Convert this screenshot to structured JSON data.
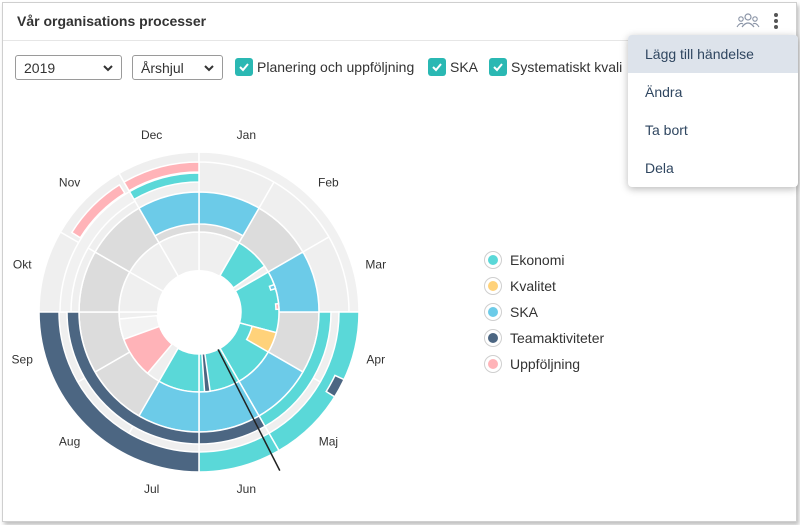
{
  "header": {
    "title": "Vår organisations processer",
    "people_icon": "people-group-icon",
    "more_icon": "kebab-menu-icon"
  },
  "filters": {
    "year": "2019",
    "view": "Årshjul",
    "checkboxes": [
      {
        "label": "Planering och uppföljning",
        "checked": true
      },
      {
        "label": "SKA",
        "checked": true
      },
      {
        "label": "Systematiskt kvali",
        "checked": true
      }
    ]
  },
  "menu": {
    "items": [
      "Lägg till händelse",
      "Ändra",
      "Ta bort",
      "Dela"
    ],
    "highlighted": 0
  },
  "months": [
    "Jan",
    "Feb",
    "Mar",
    "Apr",
    "Maj",
    "Jun",
    "Jul",
    "Aug",
    "Sep",
    "Okt",
    "Nov",
    "Dec"
  ],
  "legend": [
    {
      "label": "Ekonomi",
      "color": "#5ad8d8"
    },
    {
      "label": "Kvalitet",
      "color": "#ffd27a"
    },
    {
      "label": "SKA",
      "color": "#6ccbe8"
    },
    {
      "label": "Teamaktiviteter",
      "color": "#4c6682"
    },
    {
      "label": "Uppföljning",
      "color": "#ffb3b8"
    }
  ],
  "colors": {
    "accent": "#2ab8b3",
    "menu_text": "#2f4660",
    "menu_highlight": "#dde3eb",
    "today_line": "#222222"
  }
}
